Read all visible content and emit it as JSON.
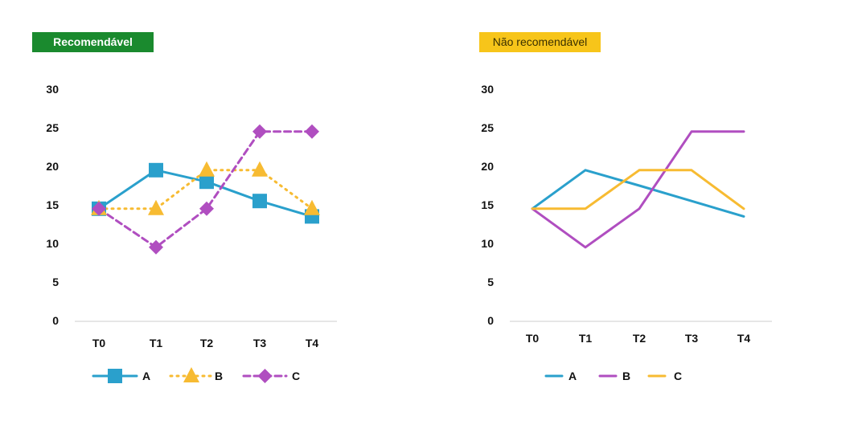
{
  "colors": {
    "A": "#2aa0cc",
    "B": "#f7bb32",
    "C": "#b04ec0",
    "badge_left": "#1a8a2e",
    "badge_right": "#f7c51a"
  },
  "chart_data": [
    {
      "type": "line",
      "title": "Recomendável",
      "categories": [
        "T0",
        "T1",
        "T2",
        "T3",
        "T4"
      ],
      "yticks": [
        "0",
        "5",
        "10",
        "15",
        "20",
        "25",
        "30"
      ],
      "ylim": [
        0,
        30
      ],
      "series": [
        {
          "name": "A",
          "values": [
            14.5,
            19.5,
            18,
            15.5,
            13.5
          ],
          "style": "solid",
          "marker": "square",
          "color": "#2aa0cc"
        },
        {
          "name": "B",
          "values": [
            14.5,
            14.5,
            19.5,
            19.5,
            14.5
          ],
          "style": "dotted",
          "marker": "triangle",
          "color": "#f7bb32"
        },
        {
          "name": "C",
          "values": [
            14.5,
            9.5,
            14.5,
            24.5,
            24.5
          ],
          "style": "dashed",
          "marker": "diamond",
          "color": "#b04ec0"
        }
      ],
      "legend": "bottom"
    },
    {
      "type": "line",
      "title": "Não recomendável",
      "categories": [
        "T0",
        "T1",
        "T2",
        "T3",
        "T4"
      ],
      "yticks": [
        "0",
        "5",
        "10",
        "15",
        "20",
        "25",
        "30"
      ],
      "ylim": [
        0,
        30
      ],
      "series": [
        {
          "name": "A",
          "values": [
            14.5,
            19.5,
            17.5,
            15.5,
            13.5
          ],
          "style": "solid",
          "marker": "none",
          "color": "#2aa0cc"
        },
        {
          "name": "B",
          "values": [
            14.5,
            9.5,
            14.5,
            24.5,
            24.5
          ],
          "style": "solid",
          "marker": "none",
          "color": "#b04ec0"
        },
        {
          "name": "C",
          "values": [
            14.5,
            14.5,
            19.5,
            19.5,
            14.5
          ],
          "style": "solid",
          "marker": "none",
          "color": "#f7bb32"
        }
      ],
      "legend": "bottom"
    }
  ]
}
